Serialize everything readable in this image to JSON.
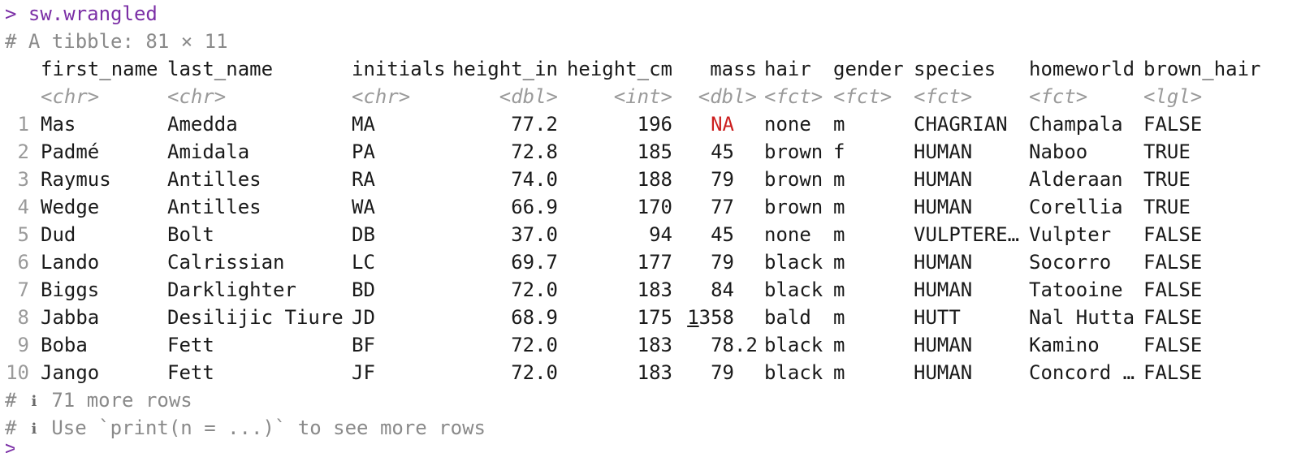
{
  "console": {
    "prompt_symbol": ">",
    "command": "sw.wrangled",
    "header_comment": "# A tibble: 81 × 11",
    "footer": [
      {
        "hash": "#",
        "icon": "info-icon",
        "text": "71 more rows"
      },
      {
        "hash": "#",
        "icon": "info-icon",
        "text": "Use `print(n = ...)` to see more rows"
      }
    ]
  },
  "table": {
    "columns": [
      {
        "name": "first_name",
        "type": "<chr>"
      },
      {
        "name": "last_name",
        "type": "<chr>"
      },
      {
        "name": "initials",
        "type": "<chr>"
      },
      {
        "name": "height_in",
        "type": "<dbl>"
      },
      {
        "name": "height_cm",
        "type": "<int>"
      },
      {
        "name": "mass",
        "type": "<dbl>"
      },
      {
        "name": "hair",
        "type": "<fct>"
      },
      {
        "name": "gender",
        "type": "<fct>"
      },
      {
        "name": "species",
        "type": "<fct>"
      },
      {
        "name": "homeworld",
        "type": "<fct>"
      },
      {
        "name": "brown_hair",
        "type": "<lgl>"
      }
    ],
    "rows": [
      {
        "n": "1",
        "cells": [
          "Mas",
          "Amedda",
          "MA",
          "77.2",
          "196",
          "NA",
          "none",
          "m",
          "CHAGRIAN",
          "Champala",
          "FALSE"
        ]
      },
      {
        "n": "2",
        "cells": [
          "Padmé",
          "Amidala",
          "PA",
          "72.8",
          "185",
          "45",
          "brown",
          "f",
          "HUMAN",
          "Naboo",
          "TRUE"
        ]
      },
      {
        "n": "3",
        "cells": [
          "Raymus",
          "Antilles",
          "RA",
          "74.0",
          "188",
          "79",
          "brown",
          "m",
          "HUMAN",
          "Alderaan",
          "TRUE"
        ]
      },
      {
        "n": "4",
        "cells": [
          "Wedge",
          "Antilles",
          "WA",
          "66.9",
          "170",
          "77",
          "brown",
          "m",
          "HUMAN",
          "Corellia",
          "TRUE"
        ]
      },
      {
        "n": "5",
        "cells": [
          "Dud",
          "Bolt",
          "DB",
          "37.0",
          "94",
          "45",
          "none",
          "m",
          "VULPTERE…",
          "Vulpter",
          "FALSE"
        ]
      },
      {
        "n": "6",
        "cells": [
          "Lando",
          "Calrissian",
          "LC",
          "69.7",
          "177",
          "79",
          "black",
          "m",
          "HUMAN",
          "Socorro",
          "FALSE"
        ]
      },
      {
        "n": "7",
        "cells": [
          "Biggs",
          "Darklighter",
          "BD",
          "72.0",
          "183",
          "84",
          "black",
          "m",
          "HUMAN",
          "Tatooine",
          "FALSE"
        ]
      },
      {
        "n": "8",
        "cells": [
          "Jabba",
          "Desilijic Tiure",
          "JD",
          "68.9",
          "175",
          "1358",
          "bald",
          "m",
          "HUTT",
          "Nal Hutta",
          "FALSE"
        ]
      },
      {
        "n": "9",
        "cells": [
          "Boba",
          "Fett",
          "BF",
          "72.0",
          "183",
          "78.2",
          "black",
          "m",
          "HUMAN",
          "Kamino",
          "FALSE"
        ]
      },
      {
        "n": "10",
        "cells": [
          "Jango",
          "Fett",
          "JF",
          "72.0",
          "183",
          "79",
          "black",
          "m",
          "HUMAN",
          "Concord …",
          "FALSE"
        ]
      }
    ]
  },
  "colors": {
    "prompt": "#7b2fa6",
    "comment": "#8a8a8a",
    "na": "#cc1f1f",
    "type_annotation": "#9a9a9a"
  }
}
